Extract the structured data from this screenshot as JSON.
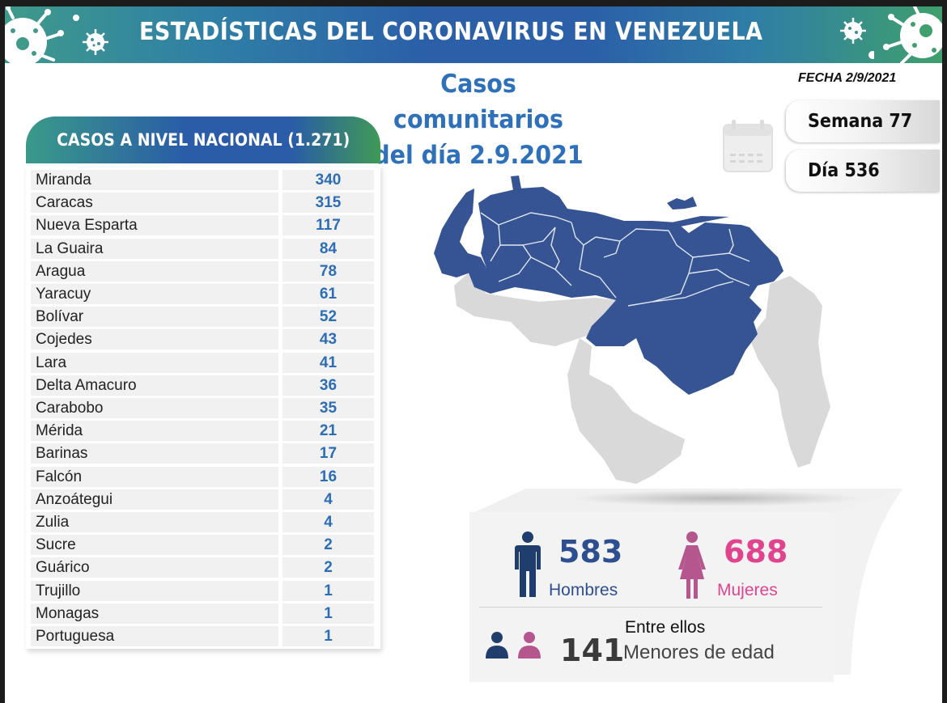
{
  "banner": {
    "title": "ESTADÍSTICAS DEL CORONAVIRUS EN VENEZUELA"
  },
  "header": {
    "title_line1": "Casos comunitarios",
    "title_line2": "del día 2.9.2021",
    "fecha": "FECHA 2/9/2021",
    "semana": "Semana 77",
    "dia": "Día 536"
  },
  "table": {
    "header": "CASOS A NIVEL NACIONAL (1.271)",
    "rows": [
      {
        "state": "Miranda",
        "cases": "340"
      },
      {
        "state": "Caracas",
        "cases": "315"
      },
      {
        "state": "Nueva Esparta",
        "cases": "117"
      },
      {
        "state": "La Guaira",
        "cases": "84"
      },
      {
        "state": "Aragua",
        "cases": "78"
      },
      {
        "state": "Yaracuy",
        "cases": "61"
      },
      {
        "state": "Bolívar",
        "cases": "52"
      },
      {
        "state": "Cojedes",
        "cases": "43"
      },
      {
        "state": "Lara",
        "cases": "41"
      },
      {
        "state": "Delta Amacuro",
        "cases": "36"
      },
      {
        "state": "Carabobo",
        "cases": "35"
      },
      {
        "state": "Mérida",
        "cases": "21"
      },
      {
        "state": "Barinas",
        "cases": "17"
      },
      {
        "state": "Falcón",
        "cases": "16"
      },
      {
        "state": "Anzoátegui",
        "cases": "4"
      },
      {
        "state": "Zulia",
        "cases": "4"
      },
      {
        "state": "Sucre",
        "cases": "2"
      },
      {
        "state": "Guárico",
        "cases": "2"
      },
      {
        "state": "Trujillo",
        "cases": "1"
      },
      {
        "state": "Monagas",
        "cases": "1"
      },
      {
        "state": "Portuguesa",
        "cases": "1"
      }
    ]
  },
  "map": {
    "highlight_color": "#365493",
    "inactive_color": "#d9d9d9",
    "highlighted_states": [
      "Zulia",
      "Falcón",
      "Lara",
      "Yaracuy",
      "Carabobo",
      "Aragua",
      "Miranda",
      "Caracas",
      "La Guaira",
      "Nueva Esparta",
      "Sucre",
      "Monagas",
      "Delta Amacuro",
      "Anzoátegui",
      "Guárico",
      "Cojedes",
      "Portuguesa",
      "Barinas",
      "Mérida",
      "Trujillo",
      "Bolívar"
    ]
  },
  "stats": {
    "men_count": "583",
    "men_label": "Hombres",
    "women_count": "688",
    "women_label": "Mujeres",
    "minors_intro": "Entre ellos",
    "minors_count": "141",
    "minors_label": "Menores de edad",
    "men_color": "#1f3e6e",
    "women_color": "#b5568f"
  }
}
